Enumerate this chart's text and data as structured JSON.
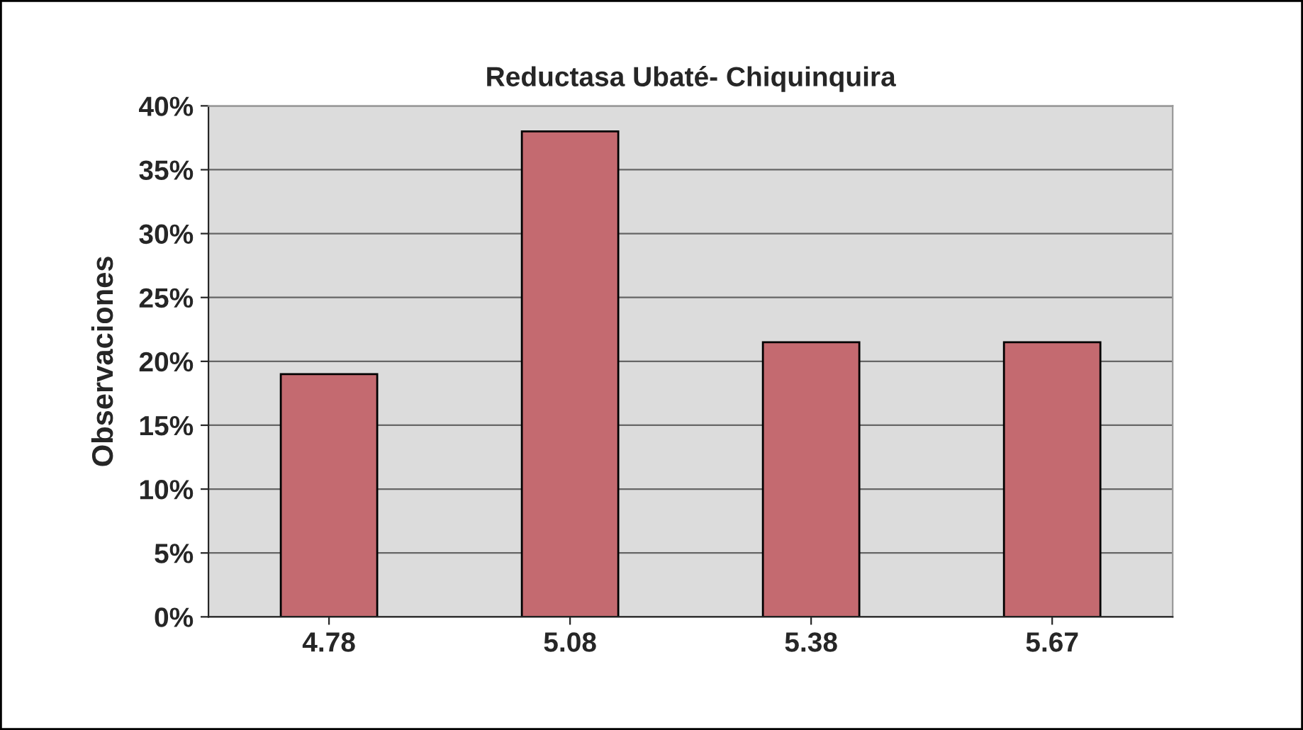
{
  "chart_data": {
    "type": "bar",
    "title": "Reductasa Ubaté- Chiquinquira",
    "ylabel": "Observaciones",
    "categories": [
      "4.78",
      "5.08",
      "5.38",
      "5.67"
    ],
    "values": [
      19,
      38,
      21.5,
      21.5
    ],
    "color": "#c46a70",
    "ylim": [
      0,
      40
    ],
    "yticks": [
      {
        "value": 0,
        "label": "0%"
      },
      {
        "value": 5,
        "label": "5%"
      },
      {
        "value": 10,
        "label": "10%"
      },
      {
        "value": 15,
        "label": "15%"
      },
      {
        "value": 20,
        "label": "20%"
      },
      {
        "value": 25,
        "label": "25%"
      },
      {
        "value": 30,
        "label": "30%"
      },
      {
        "value": 35,
        "label": "35%"
      },
      {
        "value": 40,
        "label": "40%"
      }
    ],
    "grid": "y"
  }
}
